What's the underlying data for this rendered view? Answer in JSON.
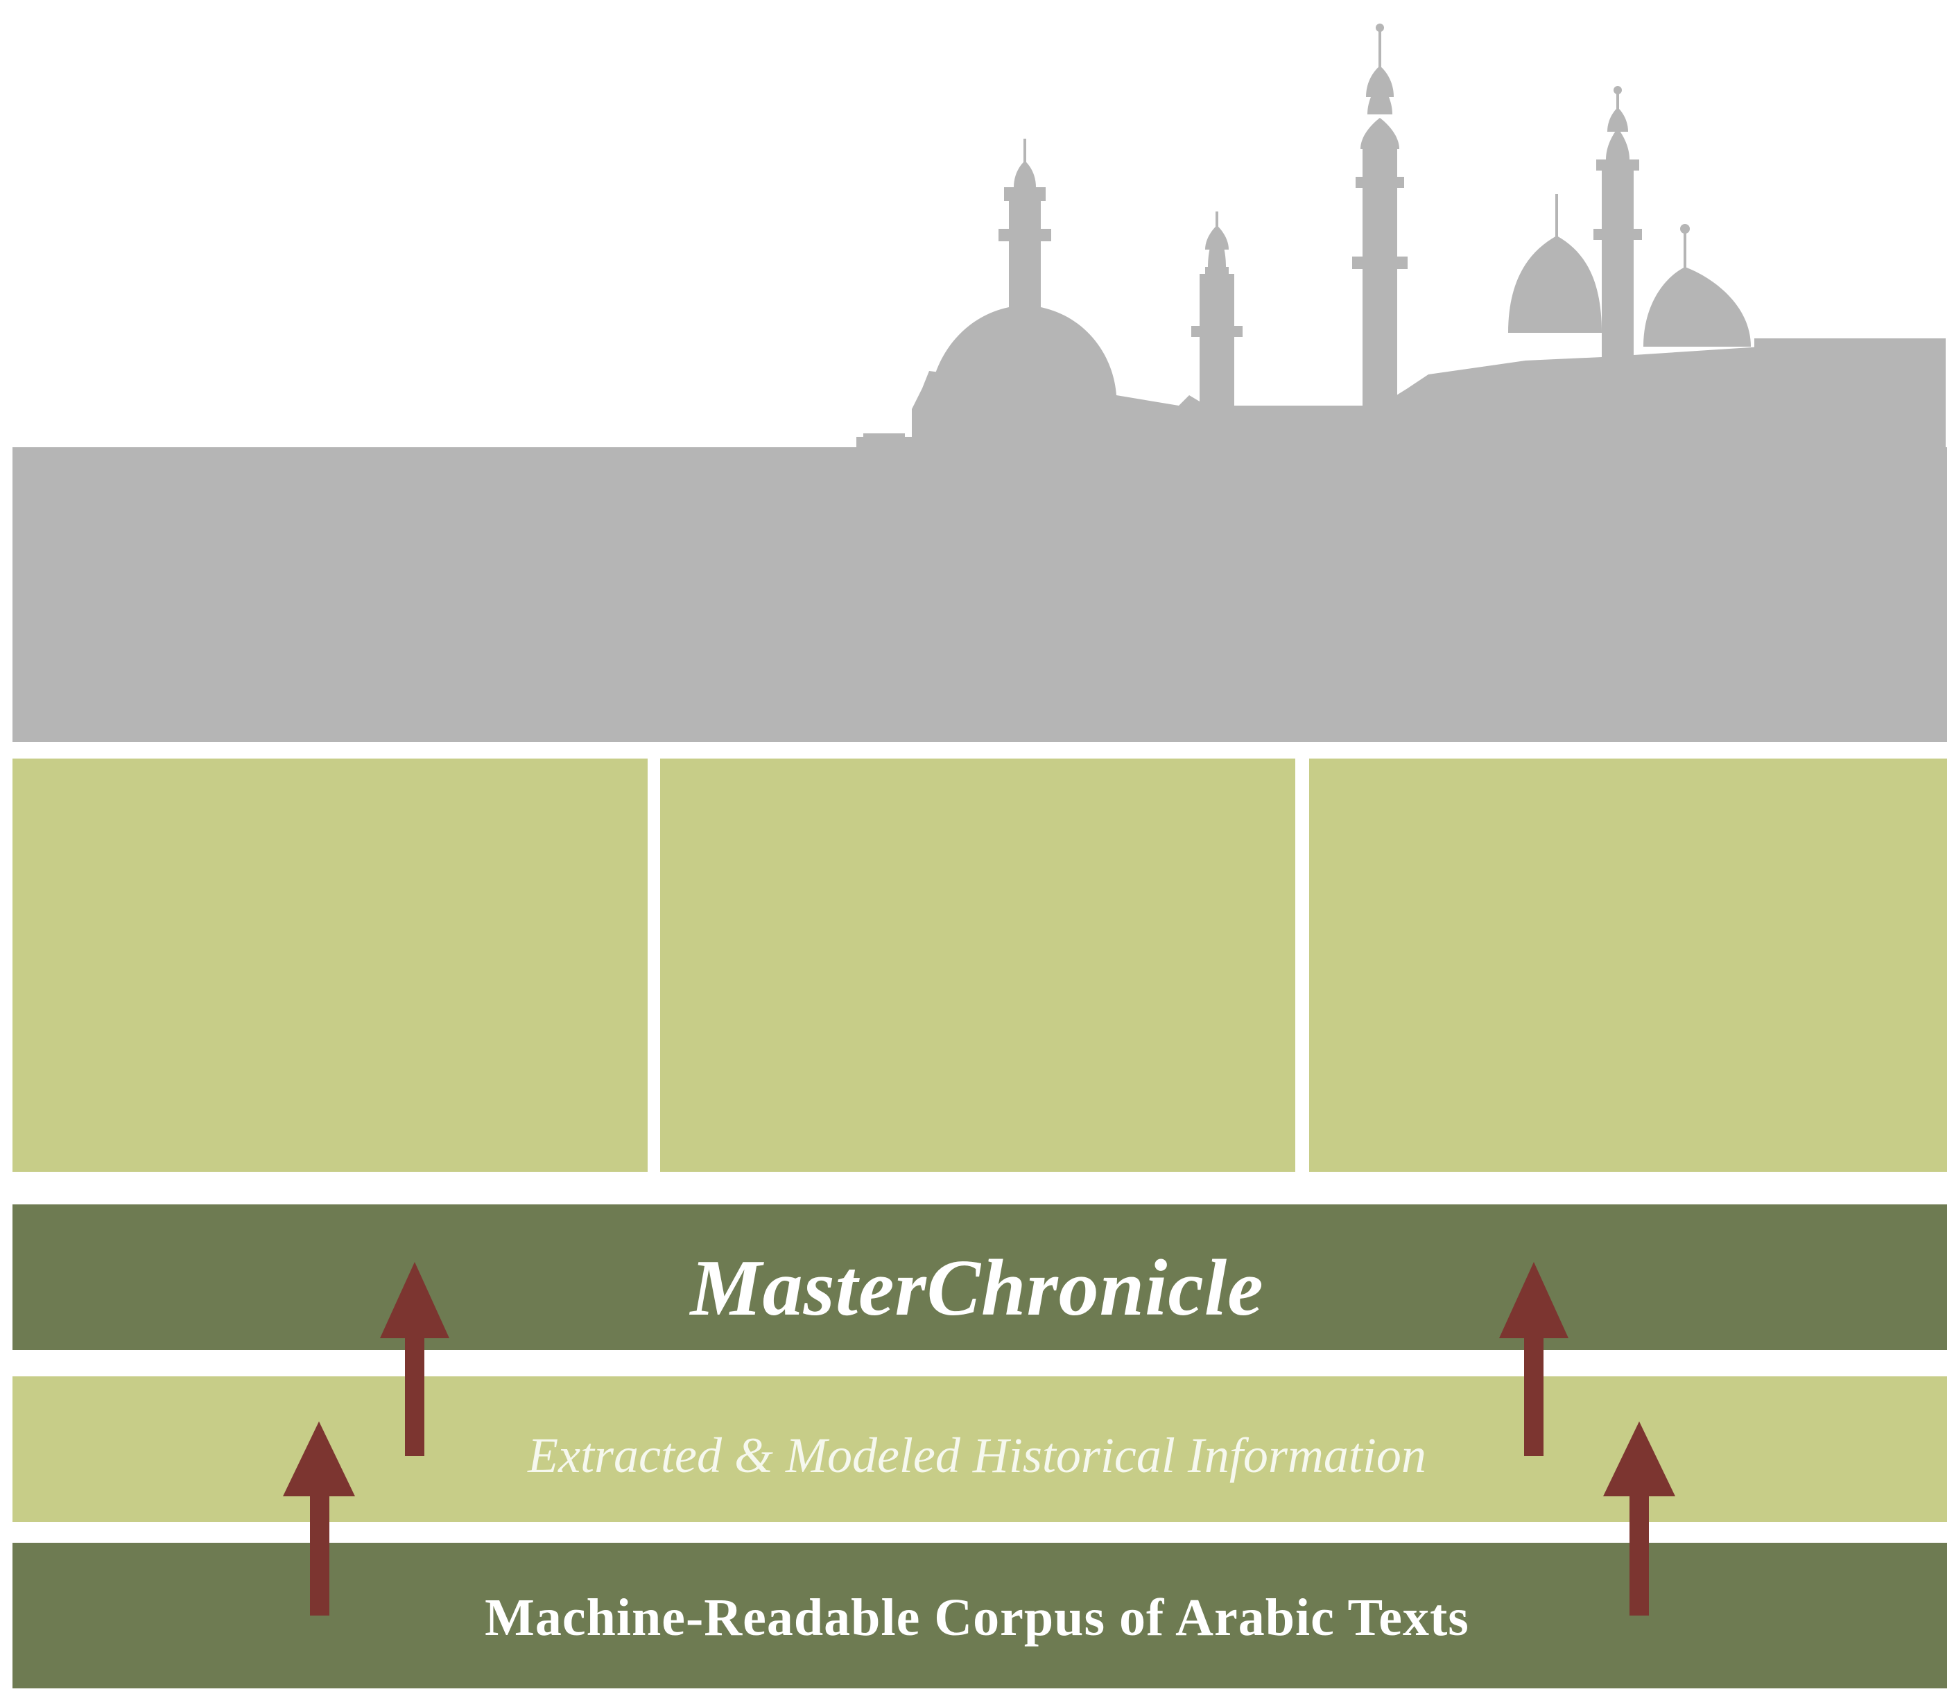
{
  "diagram": {
    "colors": {
      "skyline": "#b5b5b5",
      "light_green": "#c7cd88",
      "dark_green": "#6e7b52",
      "arrow": "#7c3530",
      "background": "#ffffff"
    },
    "skyline_icon": "mosque-skyline-silhouette",
    "arrow_icon": "up-arrow",
    "layers": {
      "top": "MasterChronicle",
      "middle": "Extracted & Modeled Historical Information",
      "bottom": "Machine-Readable Corpus of Arabic Texts"
    }
  }
}
